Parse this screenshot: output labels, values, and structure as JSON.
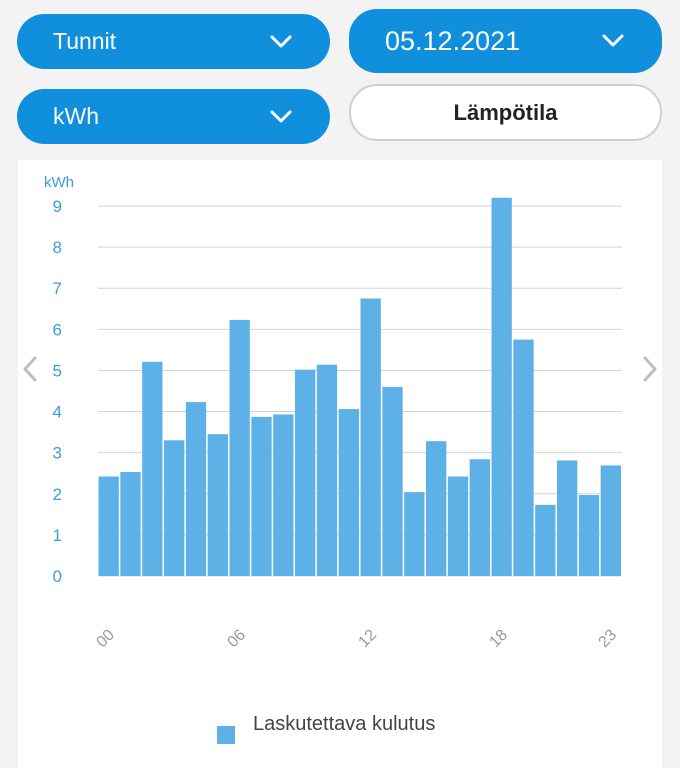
{
  "controls": {
    "period_label": "Tunnit",
    "date_label": "05.12.2021",
    "unit_label": "kWh",
    "temperature_label": "Lämpötila"
  },
  "icons": {
    "dropdown": "chevron-down-icon",
    "prev": "chevron-left-icon",
    "next": "chevron-right-icon"
  },
  "colors": {
    "accent": "#0f8fdc",
    "bar": "#5db1e6",
    "axis_text": "#3a9fd8"
  },
  "chart_data": {
    "type": "bar",
    "ylabel": "kWh",
    "ylim": [
      0,
      9
    ],
    "yticks": [
      "0",
      "1",
      "2",
      "3",
      "4",
      "5",
      "6",
      "7",
      "8",
      "9"
    ],
    "xticks": [
      {
        "index": 0,
        "label": "00"
      },
      {
        "index": 6,
        "label": "06"
      },
      {
        "index": 12,
        "label": "12"
      },
      {
        "index": 18,
        "label": "18"
      },
      {
        "index": 23,
        "label": "23"
      }
    ],
    "categories": [
      "00",
      "01",
      "02",
      "03",
      "04",
      "05",
      "06",
      "07",
      "08",
      "09",
      "10",
      "11",
      "12",
      "13",
      "14",
      "15",
      "16",
      "17",
      "18",
      "19",
      "20",
      "21",
      "22",
      "23"
    ],
    "series": [
      {
        "name": "Laskutettava kulutus",
        "values": [
          2.42,
          2.53,
          5.21,
          3.3,
          4.23,
          3.45,
          6.23,
          3.87,
          3.93,
          5.02,
          5.14,
          4.06,
          6.75,
          4.6,
          2.04,
          3.28,
          2.42,
          2.84,
          9.2,
          5.75,
          1.73,
          2.81,
          1.97,
          2.69
        ]
      }
    ],
    "grid": true,
    "legend": "bottom-center"
  }
}
